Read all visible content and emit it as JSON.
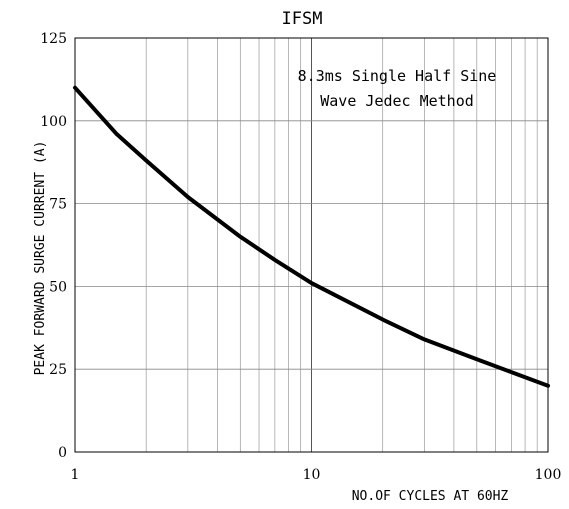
{
  "chart_data": {
    "type": "line",
    "title": "IFSM",
    "annotation_line1": "8.3ms Single Half Sine",
    "annotation_line2": "Wave Jedec Method",
    "xlabel": "NO.OF CYCLES AT 60HZ",
    "ylabel": "PEAK FORWARD SURGE CURRENT (A)",
    "x_scale": "log",
    "xlim": [
      1,
      100
    ],
    "ylim": [
      0,
      125
    ],
    "x_tick_labels": [
      "1",
      "10",
      "100"
    ],
    "y_tick_labels": [
      "0",
      "25",
      "50",
      "75",
      "100",
      "125"
    ],
    "grid": true,
    "series": [
      {
        "x": [
          1,
          1.5,
          2,
          3,
          5,
          7,
          10,
          20,
          30,
          50,
          100
        ],
        "y": [
          110,
          96,
          88,
          77,
          65,
          58,
          51,
          40,
          34,
          28,
          20
        ]
      }
    ]
  }
}
